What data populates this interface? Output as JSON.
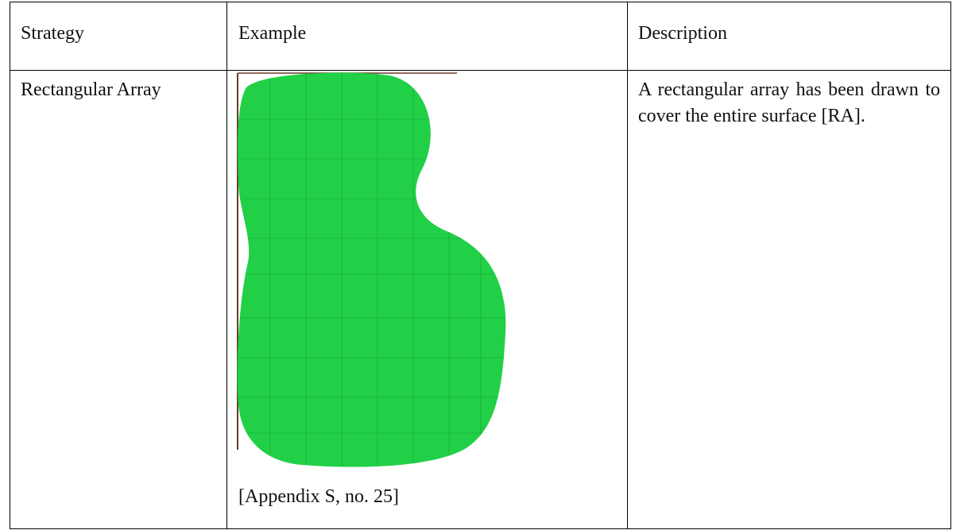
{
  "table": {
    "header": [
      "Strategy",
      "Example",
      "Description"
    ],
    "rows": [
      [
        "Rectangular Array",
        "[Appendix S, no. 25]",
        "A rectangular array has been drawn to cover the entire surface [RA]."
      ]
    ]
  }
}
